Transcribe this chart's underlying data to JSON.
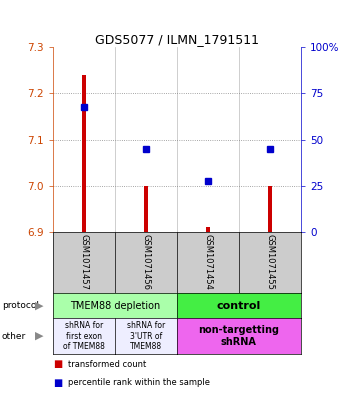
{
  "title": "GDS5077 / ILMN_1791511",
  "samples": [
    "GSM1071457",
    "GSM1071456",
    "GSM1071454",
    "GSM1071455"
  ],
  "red_values": [
    7.24,
    7.0,
    6.91,
    7.0
  ],
  "blue_values": [
    7.17,
    7.08,
    7.01,
    7.08
  ],
  "ylim_left": [
    6.9,
    7.3
  ],
  "ylim_right": [
    0,
    100
  ],
  "yticks_left": [
    6.9,
    7.0,
    7.1,
    7.2,
    7.3
  ],
  "yticks_right": [
    0,
    25,
    50,
    75,
    100
  ],
  "ytick_labels_right": [
    "0",
    "25",
    "50",
    "75",
    "100%"
  ],
  "protocol_labels": [
    "TMEM88 depletion",
    "control"
  ],
  "other_labels_1": "shRNA for\nfirst exon\nof TMEM88",
  "other_labels_2": "shRNA for\n3'UTR of\nTMEM88",
  "other_labels_3": "non-targetting\nshRNA",
  "protocol_color_1": "#aaffaa",
  "protocol_color_2": "#44ee44",
  "other_color_12": "#eeeeff",
  "other_color_3": "#ee66ee",
  "red_color": "#cc0000",
  "blue_color": "#0000cc",
  "bar_bottom": 6.9,
  "sample_bg_color": "#cccccc",
  "left_label_color": "#cc4400",
  "right_label_color": "#0000cc",
  "arrow_color": "#888888"
}
